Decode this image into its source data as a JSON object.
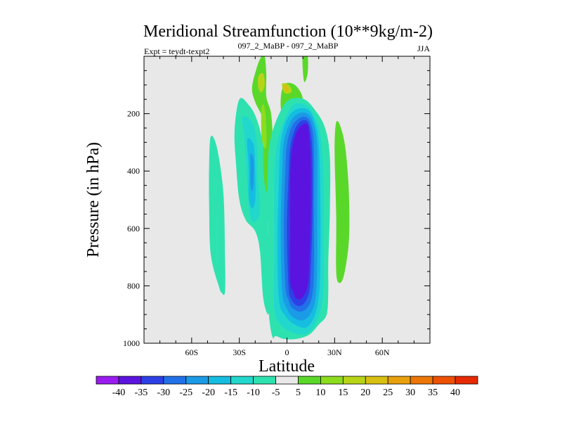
{
  "chart_data": {
    "type": "contour",
    "title": "Meridional Streamfunction (10**9kg/m-2)",
    "left_label": "Expt = teydt-texpt2",
    "center_label": "097_2_MaBP - 097_2_MaBP",
    "right_label": "JJA",
    "xlabel": "Latitude",
    "ylabel": "Pressure (in hPa)",
    "xlim": [
      -90,
      90
    ],
    "ylim": [
      1000,
      0
    ],
    "x_ticks": [
      {
        "value": -60,
        "label": "60S"
      },
      {
        "value": -30,
        "label": "30S"
      },
      {
        "value": 0,
        "label": "0"
      },
      {
        "value": 30,
        "label": "30N"
      },
      {
        "value": 60,
        "label": "60N"
      }
    ],
    "y_ticks": [
      {
        "value": 200,
        "label": "200"
      },
      {
        "value": 400,
        "label": "400"
      },
      {
        "value": 600,
        "label": "600"
      },
      {
        "value": 800,
        "label": "800"
      },
      {
        "value": 1000,
        "label": "1000"
      }
    ],
    "levels": [
      -40,
      -35,
      -30,
      -25,
      -20,
      -15,
      -10,
      -5,
      5,
      10,
      15,
      20,
      25,
      30,
      35,
      40
    ],
    "level_labels": [
      "-40",
      "-35",
      "-30",
      "-25",
      "-20",
      "-15",
      "-10",
      "-5",
      "5",
      "10",
      "15",
      "20",
      "25",
      "30",
      "35",
      "40"
    ],
    "colors": [
      "#9a1bf0",
      "#5b14e0",
      "#2d40e6",
      "#2270e8",
      "#1b9ae6",
      "#15bde0",
      "#22d8cc",
      "#2ee2b0",
      "#e8e8e8",
      "#5ad82a",
      "#8edc1e",
      "#b8d416",
      "#d8c010",
      "#e8a00c",
      "#ec7608",
      "#ee5004",
      "#e62a02"
    ],
    "missing_color": "#e8e8e8",
    "regions": [
      {
        "name": "sh-outer-cell",
        "level": -5,
        "points": [
          [
            -48,
            280
          ],
          [
            -44,
            320
          ],
          [
            -40,
            480
          ],
          [
            -39,
            700
          ],
          [
            -39,
            820
          ],
          [
            -41,
            825
          ],
          [
            -43,
            800
          ],
          [
            -48,
            690
          ],
          [
            -49,
            520
          ],
          [
            -49,
            380
          ]
        ]
      },
      {
        "name": "sh-mid-cell",
        "level": -5,
        "points": [
          [
            -30,
            150
          ],
          [
            -24,
            170
          ],
          [
            -19,
            220
          ],
          [
            -15,
            310
          ],
          [
            -12,
            460
          ],
          [
            -12,
            620
          ],
          [
            -11,
            760
          ],
          [
            -11,
            860
          ],
          [
            -12,
            900
          ],
          [
            -15,
            840
          ],
          [
            -17,
            680
          ],
          [
            -20,
            610
          ],
          [
            -26,
            570
          ],
          [
            -30,
            500
          ],
          [
            -32,
            380
          ],
          [
            -33,
            260
          ]
        ]
      },
      {
        "name": "sh-mid-cell",
        "level": -10,
        "points": [
          [
            -28,
            210
          ],
          [
            -22,
            230
          ],
          [
            -19,
            300
          ],
          [
            -18,
            440
          ],
          [
            -17,
            540
          ],
          [
            -20,
            575
          ],
          [
            -23,
            560
          ],
          [
            -25,
            450
          ],
          [
            -26,
            350
          ],
          [
            -27,
            270
          ]
        ]
      },
      {
        "name": "sh-mid-cell",
        "level": -15,
        "points": [
          [
            -25,
            290
          ],
          [
            -21,
            310
          ],
          [
            -20,
            400
          ],
          [
            -20,
            500
          ],
          [
            -22,
            530
          ],
          [
            -24,
            490
          ],
          [
            -24,
            390
          ]
        ]
      },
      {
        "name": "sh-mid-cell",
        "level": -20,
        "points": [
          [
            -23,
            340
          ],
          [
            -21,
            360
          ],
          [
            -21,
            440
          ],
          [
            -22,
            470
          ],
          [
            -23,
            440
          ],
          [
            -23,
            380
          ]
        ]
      },
      {
        "name": "strat-plume",
        "level": 5,
        "points": [
          [
            -19,
            40
          ],
          [
            -16,
            0
          ],
          [
            -14,
            0
          ],
          [
            -13,
            60
          ],
          [
            -13,
            140
          ],
          [
            -10,
            200
          ],
          [
            -9,
            300
          ],
          [
            -10,
            420
          ],
          [
            -13,
            470
          ],
          [
            -15,
            380
          ],
          [
            -15,
            230
          ],
          [
            -20,
            160
          ],
          [
            -22,
            110
          ]
        ]
      },
      {
        "name": "strat-plume",
        "level": 5,
        "points": [
          [
            -2,
            100
          ],
          [
            5,
            100
          ],
          [
            10,
            150
          ],
          [
            7,
            220
          ],
          [
            -1,
            230
          ],
          [
            -4,
            170
          ]
        ]
      },
      {
        "name": "strat-plume",
        "level": 5,
        "points": [
          [
            10,
            0
          ],
          [
            13,
            0
          ],
          [
            13,
            60
          ],
          [
            11,
            90
          ],
          [
            10,
            50
          ]
        ]
      },
      {
        "name": "strat-plume",
        "level": 10,
        "points": [
          [
            -16,
            180
          ],
          [
            -14,
            180
          ],
          [
            -13,
            260
          ],
          [
            -13,
            310
          ],
          [
            -14,
            320
          ],
          [
            -16,
            280
          ]
        ]
      },
      {
        "name": "strat-plume",
        "level": 15,
        "points": [
          [
            -18,
            70
          ],
          [
            -15,
            60
          ],
          [
            -14,
            100
          ],
          [
            -16,
            125
          ],
          [
            -18,
            110
          ]
        ]
      },
      {
        "name": "strat-plume",
        "level": 15,
        "points": [
          [
            -3,
            95
          ],
          [
            1,
            100
          ],
          [
            3,
            120
          ],
          [
            1,
            130
          ],
          [
            -2,
            125
          ]
        ]
      },
      {
        "name": "strat-plume",
        "level": 20,
        "points": [
          [
            -2,
            100
          ],
          [
            0,
            102
          ],
          [
            1,
            118
          ],
          [
            -1,
            123
          ],
          [
            -2,
            110
          ]
        ]
      },
      {
        "name": "nh-cell",
        "level": 5,
        "points": [
          [
            31,
            230
          ],
          [
            34,
            250
          ],
          [
            37,
            330
          ],
          [
            39,
            480
          ],
          [
            39,
            640
          ],
          [
            36,
            760
          ],
          [
            33,
            790
          ],
          [
            31,
            750
          ],
          [
            31,
            560
          ],
          [
            30,
            330
          ]
        ]
      },
      {
        "name": "hadley-cell",
        "level": -5,
        "points": [
          [
            -9,
            980
          ],
          [
            -11,
            920
          ],
          [
            -12,
            800
          ],
          [
            -12,
            600
          ],
          [
            -12,
            380
          ],
          [
            -10,
            280
          ],
          [
            -4,
            190
          ],
          [
            2,
            150
          ],
          [
            11,
            150
          ],
          [
            18,
            190
          ],
          [
            24,
            250
          ],
          [
            27,
            350
          ],
          [
            27,
            540
          ],
          [
            26,
            720
          ],
          [
            26,
            820
          ],
          [
            25,
            900
          ],
          [
            20,
            935
          ],
          [
            14,
            970
          ],
          [
            6,
            985
          ],
          [
            -2,
            985
          ],
          [
            -7,
            975
          ]
        ]
      },
      {
        "name": "hadley-cell",
        "level": -10,
        "points": [
          [
            -8,
            880
          ],
          [
            -8,
            700
          ],
          [
            -8,
            450
          ],
          [
            -7,
            330
          ],
          [
            -3,
            240
          ],
          [
            4,
            170
          ],
          [
            12,
            170
          ],
          [
            17,
            205
          ],
          [
            21,
            270
          ],
          [
            23,
            420
          ],
          [
            23,
            640
          ],
          [
            23,
            800
          ],
          [
            21,
            890
          ],
          [
            16,
            950
          ],
          [
            10,
            970
          ],
          [
            2,
            960
          ],
          [
            -4,
            935
          ]
        ]
      },
      {
        "name": "hadley-cell",
        "level": -15,
        "points": [
          [
            -5,
            850
          ],
          [
            -6,
            650
          ],
          [
            -5,
            420
          ],
          [
            -4,
            300
          ],
          [
            0,
            220
          ],
          [
            6,
            185
          ],
          [
            13,
            185
          ],
          [
            17,
            220
          ],
          [
            20,
            300
          ],
          [
            21,
            500
          ],
          [
            21,
            720
          ],
          [
            20,
            840
          ],
          [
            17,
            910
          ],
          [
            12,
            945
          ],
          [
            5,
            935
          ],
          [
            -1,
            905
          ]
        ]
      },
      {
        "name": "hadley-cell",
        "level": -20,
        "points": [
          [
            -3,
            820
          ],
          [
            -4,
            600
          ],
          [
            -3,
            400
          ],
          [
            -2,
            300
          ],
          [
            2,
            230
          ],
          [
            7,
            200
          ],
          [
            13,
            200
          ],
          [
            17,
            240
          ],
          [
            19,
            320
          ],
          [
            19,
            520
          ],
          [
            19,
            720
          ],
          [
            18,
            840
          ],
          [
            15,
            895
          ],
          [
            10,
            920
          ],
          [
            4,
            910
          ],
          [
            0,
            880
          ]
        ]
      },
      {
        "name": "hadley-cell",
        "level": -25,
        "points": [
          [
            -1,
            800
          ],
          [
            -2,
            600
          ],
          [
            -1,
            400
          ],
          [
            0,
            310
          ],
          [
            3,
            245
          ],
          [
            8,
            215
          ],
          [
            13,
            215
          ],
          [
            16,
            255
          ],
          [
            17,
            330
          ],
          [
            17,
            540
          ],
          [
            17,
            740
          ],
          [
            16,
            830
          ],
          [
            13,
            875
          ],
          [
            8,
            890
          ],
          [
            3,
            875
          ],
          [
            1,
            850
          ]
        ]
      },
      {
        "name": "hadley-cell",
        "level": -30,
        "points": [
          [
            1,
            800
          ],
          [
            0,
            600
          ],
          [
            1,
            420
          ],
          [
            2,
            320
          ],
          [
            5,
            255
          ],
          [
            9,
            225
          ],
          [
            13,
            228
          ],
          [
            15,
            270
          ],
          [
            16,
            350
          ],
          [
            16,
            560
          ],
          [
            15,
            740
          ],
          [
            14,
            820
          ],
          [
            11,
            860
          ],
          [
            7,
            870
          ],
          [
            3,
            850
          ]
        ]
      },
      {
        "name": "hadley-cell",
        "level": -35,
        "points": [
          [
            2,
            780
          ],
          [
            2,
            600
          ],
          [
            2,
            430
          ],
          [
            3,
            330
          ],
          [
            6,
            265
          ],
          [
            10,
            238
          ],
          [
            13,
            240
          ],
          [
            14,
            280
          ],
          [
            15,
            360
          ],
          [
            15,
            560
          ],
          [
            14,
            730
          ],
          [
            13,
            800
          ],
          [
            10,
            840
          ],
          [
            6,
            845
          ],
          [
            4,
            820
          ]
        ]
      }
    ]
  }
}
